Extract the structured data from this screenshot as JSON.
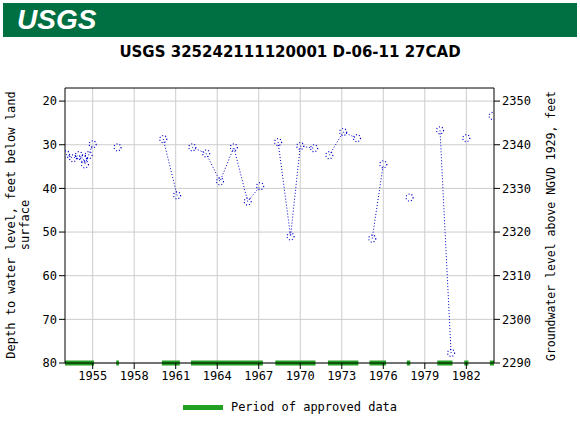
{
  "header": "USGS",
  "chart_data": {
    "type": "scatter",
    "title": "USGS 325242111120001 D-06-11 27CAD",
    "ylabel": "Depth to water level, feet below land surface",
    "y2label": "Groundwater level above NGVD 1929, feet",
    "xlim": [
      1953,
      1984
    ],
    "xticks": [
      1955,
      1958,
      1961,
      1964,
      1967,
      1970,
      1973,
      1976,
      1979,
      1982
    ],
    "ylim": [
      80,
      17
    ],
    "yticks": [
      20,
      30,
      40,
      50,
      60,
      70,
      80
    ],
    "y2lim": [
      2290,
      2353
    ],
    "y2ticks": [
      2290,
      2300,
      2310,
      2320,
      2330,
      2340,
      2350
    ],
    "grid": true,
    "legend": "bottom",
    "series": [
      {
        "color": "#0000cc",
        "marker": "circle",
        "line_style": "dotted",
        "x": [
          1953.07,
          1953.58,
          1954.0,
          1954.3,
          1954.44,
          1954.7,
          1955.0
        ],
        "values": [
          32.2,
          33.1,
          32.4,
          33.1,
          34.5,
          32.4,
          29.9
        ]
      },
      {
        "color": "#0000cc",
        "marker": "circle",
        "line_style": "dotted",
        "x": [
          1956.8
        ],
        "values": [
          30.6
        ]
      },
      {
        "color": "#0000cc",
        "marker": "circle",
        "line_style": "dotted",
        "x": [
          1960.1,
          1961.1
        ],
        "values": [
          28.7,
          41.6
        ]
      },
      {
        "color": "#0000cc",
        "marker": "circle",
        "line_style": "dotted",
        "x": [
          1962.2,
          1963.2,
          1964.2,
          1965.2,
          1966.2,
          1967.1
        ],
        "values": [
          30.6,
          32.0,
          38.4,
          30.6,
          43.0,
          39.5
        ]
      },
      {
        "color": "#0000cc",
        "marker": "circle",
        "line_style": "dotted",
        "x": [
          1968.4,
          1969.3,
          1970.0,
          1971.0
        ],
        "values": [
          29.4,
          51.0,
          30.3,
          30.8
        ]
      },
      {
        "color": "#0000cc",
        "marker": "circle",
        "line_style": "dotted",
        "x": [
          1972.1,
          1973.1,
          1974.1
        ],
        "values": [
          32.4,
          27.1,
          28.5
        ]
      },
      {
        "color": "#0000cc",
        "marker": "circle",
        "line_style": "dotted",
        "x": [
          1975.2,
          1976.0
        ],
        "values": [
          51.5,
          34.5
        ]
      },
      {
        "color": "#0000cc",
        "marker": "circle",
        "line_style": "dotted",
        "x": [
          1977.9
        ],
        "values": [
          42.1
        ]
      },
      {
        "color": "#0000cc",
        "marker": "circle",
        "line_style": "dotted",
        "x": [
          1980.1,
          1980.9
        ],
        "values": [
          26.7,
          77.7
        ]
      },
      {
        "color": "#0000cc",
        "marker": "circle",
        "line_style": "dotted",
        "x": [
          1982.0
        ],
        "values": [
          28.5
        ]
      },
      {
        "color": "#0000cc",
        "marker": "circle",
        "line_style": "dotted",
        "x": [
          1983.9
        ],
        "values": [
          23.4
        ]
      }
    ],
    "approved_periods": {
      "name": "Period of approved data",
      "color": "#22a022",
      "ranges": [
        [
          1953,
          1955.1
        ],
        [
          1956.7,
          1956.9
        ],
        [
          1960.0,
          1961.3
        ],
        [
          1962.1,
          1967.3
        ],
        [
          1968.2,
          1971.1
        ],
        [
          1972.0,
          1974.2
        ],
        [
          1975.0,
          1976.2
        ],
        [
          1977.7,
          1977.95
        ],
        [
          1979.9,
          1981.0
        ],
        [
          1981.85,
          1982.15
        ],
        [
          1983.7,
          1984
        ]
      ]
    }
  }
}
